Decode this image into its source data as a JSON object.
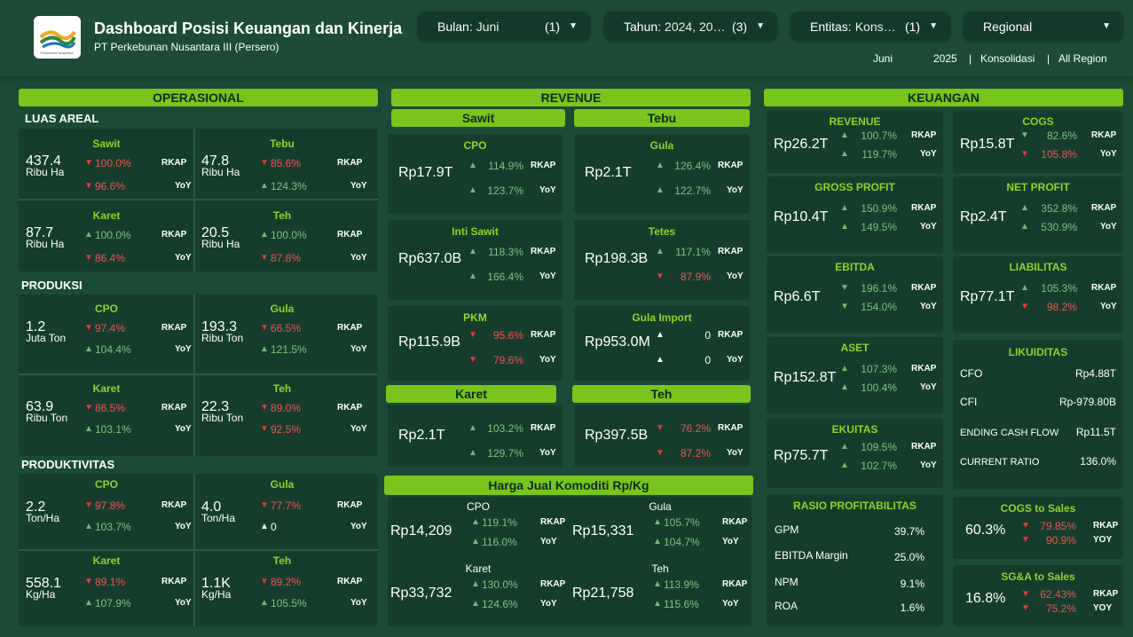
{
  "header": {
    "title": "Dashboard Posisi Keuangan dan Kinerja",
    "subtitle": "PT Perkebunan Nusantara III (Persero)",
    "logo_text": "Perkebunan Nusantara",
    "filters": [
      {
        "label": "Bulan:",
        "value": "Juni",
        "count": "(1)"
      },
      {
        "label": "Tahun:",
        "value": "2024, 202…",
        "count": "(3)"
      },
      {
        "label": "Entitas:",
        "value": "Konso…",
        "count": "(1)"
      },
      {
        "label": "Regional",
        "value": "",
        "count": ""
      }
    ],
    "context": {
      "month": "Juni",
      "year": "2025",
      "sep1": "|",
      "entity": "Konsolidasi",
      "sep2": "|",
      "region": "All Region"
    }
  },
  "sections": {
    "operasional": "OPERASIONAL",
    "revenue": "REVENUE",
    "keuangan": "KEUANGAN",
    "luas_areal": "LUAS AREAL",
    "produksi": "PRODUKSI",
    "produktivitas": "PRODUKTIVITAS",
    "rev_sawit": "Sawit",
    "rev_tebu": "Tebu",
    "rev_karet": "Karet",
    "rev_teh": "Teh",
    "harga_jual": "Harga Jual Komoditi Rp/Kg"
  },
  "tags": {
    "rkap": "RKAP",
    "yoy": "YoY",
    "yoy_caps": "YOY"
  },
  "operasional": {
    "luas": [
      {
        "name": "Sawit",
        "value": "437.4",
        "unit": "Ribu Ha",
        "rkap": "100.0%",
        "rkap_dir": "down",
        "yoy": "96.6%",
        "yoy_dir": "down"
      },
      {
        "name": "Tebu",
        "value": "47.8",
        "unit": "Ribu Ha",
        "rkap": "85.6%",
        "rkap_dir": "down",
        "yoy": "124.3%",
        "yoy_dir": "up"
      },
      {
        "name": "Karet",
        "value": "87.7",
        "unit": "Ribu Ha",
        "rkap": "100.0%",
        "rkap_dir": "up",
        "yoy": "86.4%",
        "yoy_dir": "down"
      },
      {
        "name": "Teh",
        "value": "20.5",
        "unit": "Ribu Ha",
        "rkap": "100.0%",
        "rkap_dir": "up",
        "yoy": "87.8%",
        "yoy_dir": "down"
      }
    ],
    "produksi": [
      {
        "name": "CPO",
        "value": "1.2",
        "unit": "Juta Ton",
        "rkap": "97.4%",
        "rkap_dir": "down",
        "yoy": "104.4%",
        "yoy_dir": "up"
      },
      {
        "name": "Gula",
        "value": "193.3",
        "unit": "Ribu Ton",
        "rkap": "66.5%",
        "rkap_dir": "down",
        "yoy": "121.5%",
        "yoy_dir": "up"
      },
      {
        "name": "Karet",
        "value": "63.9",
        "unit": "Ribu Ton",
        "rkap": "86.5%",
        "rkap_dir": "down",
        "yoy": "103.1%",
        "yoy_dir": "up"
      },
      {
        "name": "Teh",
        "value": "22.3",
        "unit": "Ribu Ton",
        "rkap": "89.0%",
        "rkap_dir": "down",
        "yoy": "92.5%",
        "yoy_dir": "down"
      }
    ],
    "produktivitas": [
      {
        "name": "CPO",
        "value": "2.2",
        "unit": "Ton/Ha",
        "rkap": "97.8%",
        "rkap_dir": "down",
        "yoy": "103.7%",
        "yoy_dir": "up"
      },
      {
        "name": "Gula",
        "value": "4.0",
        "unit": "Ton/Ha",
        "rkap": "77.7%",
        "rkap_dir": "down",
        "yoy": "0",
        "yoy_dir": "neutral"
      },
      {
        "name": "Karet",
        "value": "558.1",
        "unit": "Kg/Ha",
        "rkap": "89.1%",
        "rkap_dir": "down",
        "yoy": "107.9%",
        "yoy_dir": "up"
      },
      {
        "name": "Teh",
        "value": "1.1K",
        "unit": "Kg/Ha",
        "rkap": "89.2%",
        "rkap_dir": "down",
        "yoy": "105.5%",
        "yoy_dir": "up"
      }
    ]
  },
  "revenue": {
    "sawit": [
      {
        "name": "CPO",
        "value": "Rp17.9T",
        "rkap": "114.9%",
        "rkap_dir": "up",
        "yoy": "123.7%",
        "yoy_dir": "up"
      },
      {
        "name": "Inti Sawit",
        "value": "Rp637.0B",
        "rkap": "118.3%",
        "rkap_dir": "up",
        "yoy": "166.4%",
        "yoy_dir": "up"
      },
      {
        "name": "PKM",
        "value": "Rp115.9B",
        "rkap": "95.6%",
        "rkap_dir": "down",
        "yoy": "79.6%",
        "yoy_dir": "down"
      }
    ],
    "tebu": [
      {
        "name": "Gula",
        "value": "Rp2.1T",
        "rkap": "126.4%",
        "rkap_dir": "up",
        "yoy": "122.7%",
        "yoy_dir": "up"
      },
      {
        "name": "Tetes",
        "value": "Rp198.3B",
        "rkap": "117.1%",
        "rkap_dir": "up",
        "yoy": "87.9%",
        "yoy_dir": "down"
      },
      {
        "name": "Gula Import",
        "value": "Rp953.0M",
        "rkap": "0",
        "rkap_dir": "neutral",
        "yoy": "0",
        "yoy_dir": "neutral"
      }
    ],
    "karet": {
      "value": "Rp2.1T",
      "rkap": "103.2%",
      "rkap_dir": "up",
      "yoy": "129.7%",
      "yoy_dir": "up"
    },
    "teh": {
      "value": "Rp397.5B",
      "rkap": "76.2%",
      "rkap_dir": "down",
      "yoy": "87.2%",
      "yoy_dir": "down"
    },
    "harga": [
      {
        "name": "CPO",
        "value": "Rp14,209",
        "rkap": "119.1%",
        "rkap_dir": "up",
        "yoy": "116.0%",
        "yoy_dir": "up"
      },
      {
        "name": "Gula",
        "value": "Rp15,331",
        "rkap": "105.7%",
        "rkap_dir": "up",
        "yoy": "104.7%",
        "yoy_dir": "up"
      },
      {
        "name": "Karet",
        "value": "Rp33,732",
        "rkap": "130.0%",
        "rkap_dir": "up",
        "yoy": "124.6%",
        "yoy_dir": "up"
      },
      {
        "name": "Teh",
        "value": "Rp21,758",
        "rkap": "113.9%",
        "rkap_dir": "up",
        "yoy": "115.6%",
        "yoy_dir": "up"
      }
    ]
  },
  "keuangan": {
    "left": [
      {
        "name": "REVENUE",
        "value": "Rp26.2T",
        "rkap": "100.7%",
        "rkap_dir": "up",
        "yoy": "119.7%",
        "yoy_dir": "up"
      },
      {
        "name": "GROSS PROFIT",
        "value": "Rp10.4T",
        "rkap": "150.9%",
        "rkap_dir": "up",
        "yoy": "149.5%",
        "yoy_dir": "up"
      },
      {
        "name": "EBITDA",
        "value": "Rp6.6T",
        "rkap": "196.1%",
        "rkap_dir": "down_g",
        "yoy": "154.0%",
        "yoy_dir": "down_g"
      },
      {
        "name": "ASET",
        "value": "Rp152.8T",
        "rkap": "107.3%",
        "rkap_dir": "up",
        "yoy": "100.4%",
        "yoy_dir": "up"
      },
      {
        "name": "EKUITAS",
        "value": "Rp75.7T",
        "rkap": "109.5%",
        "rkap_dir": "up",
        "yoy": "102.7%",
        "yoy_dir": "up"
      }
    ],
    "right": [
      {
        "name": "COGS",
        "value": "Rp15.8T",
        "rkap": "82.6%",
        "rkap_dir": "down_g",
        "yoy": "105.8%",
        "yoy_dir": "down"
      },
      {
        "name": "NET PROFIT",
        "value": "Rp2.4T",
        "rkap": "352.8%",
        "rkap_dir": "up",
        "yoy": "530.9%",
        "yoy_dir": "up"
      },
      {
        "name": "LIABILITAS",
        "value": "Rp77.1T",
        "rkap": "105.3%",
        "rkap_dir": "up",
        "yoy": "98.2%",
        "yoy_dir": "down"
      }
    ],
    "likuiditas": {
      "title": "LIKUIDITAS",
      "rows": [
        {
          "label": "CFO",
          "value": "Rp4.88T"
        },
        {
          "label": "CFI",
          "value": "Rp-979.80B"
        },
        {
          "label": "ENDING CASH FLOW",
          "value": "Rp11.5T"
        },
        {
          "label": "CURRENT RATIO",
          "value": "136.0%"
        }
      ]
    },
    "rasio": {
      "title": "RASIO PROFITABILITAS",
      "rows": [
        {
          "label": "GPM",
          "value": "39.7%"
        },
        {
          "label": "EBITDA Margin",
          "value": "25.0%"
        },
        {
          "label": "NPM",
          "value": "9.1%"
        },
        {
          "label": "ROA",
          "value": "1.6%"
        }
      ]
    },
    "cogs_sales": {
      "title": "COGS to Sales",
      "value": "60.3%",
      "rkap": "79.85%",
      "rkap_dir": "down",
      "yoy": "90.9%",
      "yoy_dir": "down"
    },
    "sga_sales": {
      "title": "SG&A to Sales",
      "value": "16.8%",
      "rkap": "62.43%",
      "rkap_dir": "down",
      "yoy": "75.2%",
      "yoy_dir": "down"
    }
  },
  "colors": {
    "bg": "#1b4a37",
    "card": "#163d2c",
    "accent": "#78c51b",
    "name": "#8ed42a",
    "up": "#6fbf73",
    "down": "#e53935"
  }
}
